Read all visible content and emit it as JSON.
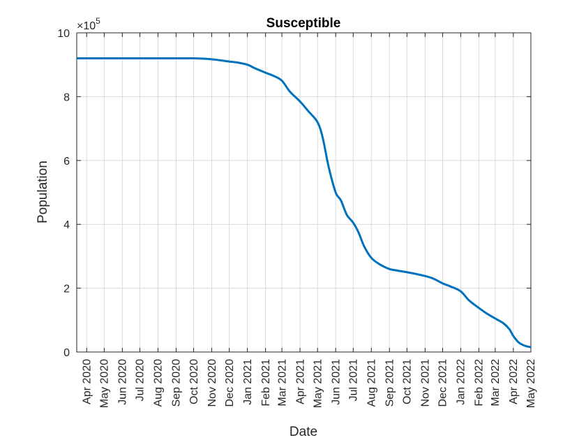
{
  "chart_data": {
    "type": "line",
    "title": "Susceptible",
    "xlabel": "Date",
    "ylabel": "Population",
    "y_multiplier": "×10",
    "y_multiplier_exponent": "5",
    "ylim": [
      0,
      10
    ],
    "y_ticks": [
      0,
      2,
      4,
      6,
      8,
      10
    ],
    "y_tick_labels": [
      "0",
      "2",
      "4",
      "6",
      "8",
      "10"
    ],
    "xlim": [
      "2020-03-15",
      "2022-05-01"
    ],
    "x_ticks": [
      "2020-04-01",
      "2020-05-01",
      "2020-06-01",
      "2020-07-01",
      "2020-08-01",
      "2020-09-01",
      "2020-10-01",
      "2020-11-01",
      "2020-12-01",
      "2021-01-01",
      "2021-02-01",
      "2021-03-01",
      "2021-04-01",
      "2021-05-01",
      "2021-06-01",
      "2021-07-01",
      "2021-08-01",
      "2021-09-01",
      "2021-10-01",
      "2021-11-01",
      "2021-12-01",
      "2022-01-01",
      "2022-02-01",
      "2022-03-01",
      "2022-04-01",
      "2022-05-01"
    ],
    "x_tick_labels": [
      "Apr 2020",
      "May 2020",
      "Jun 2020",
      "Jul 2020",
      "Aug 2020",
      "Sep 2020",
      "Oct 2020",
      "Nov 2020",
      "Dec 2020",
      "Jan 2021",
      "Feb 2021",
      "Mar 2021",
      "Apr 2021",
      "May 2021",
      "Jun 2021",
      "Jul 2021",
      "Aug 2021",
      "Sep 2021",
      "Oct 2021",
      "Nov 2021",
      "Dec 2021",
      "Jan 2022",
      "Feb 2022",
      "Mar 2022",
      "Apr 2022",
      "May 2022"
    ],
    "grid": true,
    "series": [
      {
        "color": "#0072bd",
        "x": [
          "2020-03-15",
          "2020-04-01",
          "2020-05-01",
          "2020-06-01",
          "2020-07-01",
          "2020-08-01",
          "2020-09-01",
          "2020-10-01",
          "2020-11-01",
          "2020-12-01",
          "2020-12-15",
          "2021-01-01",
          "2021-01-15",
          "2021-02-01",
          "2021-02-15",
          "2021-03-01",
          "2021-03-15",
          "2021-04-01",
          "2021-04-15",
          "2021-05-01",
          "2021-05-10",
          "2021-05-20",
          "2021-06-01",
          "2021-06-10",
          "2021-06-20",
          "2021-07-01",
          "2021-07-10",
          "2021-07-20",
          "2021-08-01",
          "2021-08-15",
          "2021-09-01",
          "2021-09-15",
          "2021-10-01",
          "2021-10-15",
          "2021-11-01",
          "2021-11-15",
          "2021-12-01",
          "2021-12-15",
          "2022-01-01",
          "2022-01-15",
          "2022-02-01",
          "2022-02-15",
          "2022-03-01",
          "2022-03-15",
          "2022-03-25",
          "2022-04-01",
          "2022-04-10",
          "2022-04-20",
          "2022-05-01"
        ],
        "values": [
          9.2,
          9.2,
          9.2,
          9.2,
          9.2,
          9.2,
          9.2,
          9.2,
          9.17,
          9.1,
          9.07,
          9.0,
          8.88,
          8.75,
          8.65,
          8.5,
          8.15,
          7.85,
          7.55,
          7.2,
          6.7,
          5.8,
          5.0,
          4.75,
          4.3,
          4.05,
          3.75,
          3.3,
          2.95,
          2.75,
          2.6,
          2.55,
          2.5,
          2.45,
          2.38,
          2.3,
          2.15,
          2.05,
          1.9,
          1.62,
          1.38,
          1.2,
          1.05,
          0.9,
          0.72,
          0.5,
          0.3,
          0.2,
          0.15
        ]
      }
    ]
  }
}
